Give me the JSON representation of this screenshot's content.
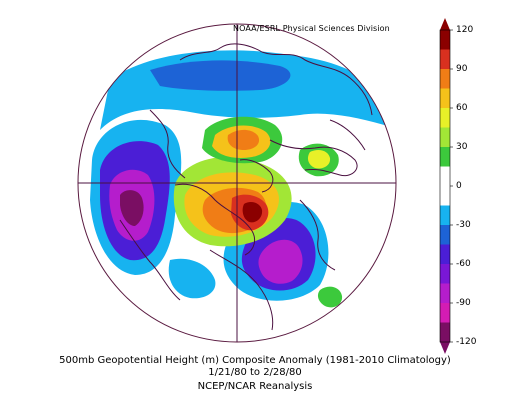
{
  "map": {
    "projection": "polar-stereographic-north",
    "credit": "NOAA/ESRL Physical Sciences Division",
    "caption": {
      "title": "500mb Geopotential Height (m) Composite Anomaly (1981-2010 Climatology)",
      "dates": "1/21/80  to 2/28/80",
      "source": "NCEP/NCAR Reanalysis"
    }
  },
  "colorbar": {
    "ticks": [
      "120",
      "90",
      "60",
      "30",
      "0",
      "-30",
      "-60",
      "-90",
      "-120"
    ],
    "colors": [
      "#8b0000",
      "#d9301f",
      "#f07d16",
      "#f5c21a",
      "#e8f028",
      "#a2e636",
      "#3cc93c",
      "#ffffff",
      "#ffffff",
      "#17b3f0",
      "#1d63d6",
      "#4b1ed6",
      "#7a17d6",
      "#b51dcc",
      "#d41cb4",
      "#7a0e63"
    ]
  },
  "colors": {
    "outline": "#5a1a40",
    "coast": "#4a1040"
  }
}
